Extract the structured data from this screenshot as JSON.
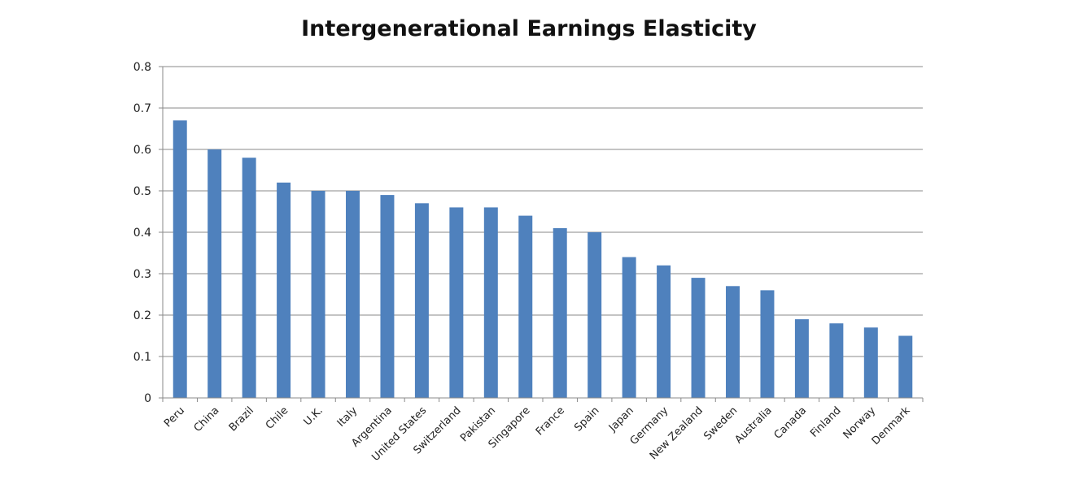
{
  "chart_data": {
    "type": "bar",
    "title": "Intergenerational Earnings Elasticity",
    "xlabel": "",
    "ylabel": "",
    "ylim": [
      0,
      0.8
    ],
    "yticks": [
      "0",
      "0.1",
      "0.2",
      "0.3",
      "0.4",
      "0.5",
      "0.6",
      "0.7",
      "0.8"
    ],
    "grid": true,
    "legend": "none",
    "bar_color": "#4F81BD",
    "categories": [
      "Peru",
      "China",
      "Brazil",
      "Chile",
      "U.K.",
      "Italy",
      "Argentina",
      "United States",
      "Switzerland",
      "Pakistan",
      "Singapore",
      "France",
      "Spain",
      "Japan",
      "Germany",
      "New Zealand",
      "Sweden",
      "Australia",
      "Canada",
      "Finland",
      "Norway",
      "Denmark"
    ],
    "values": [
      0.67,
      0.6,
      0.58,
      0.52,
      0.5,
      0.5,
      0.49,
      0.47,
      0.46,
      0.46,
      0.44,
      0.41,
      0.4,
      0.34,
      0.32,
      0.29,
      0.27,
      0.26,
      0.19,
      0.18,
      0.17,
      0.15
    ]
  }
}
